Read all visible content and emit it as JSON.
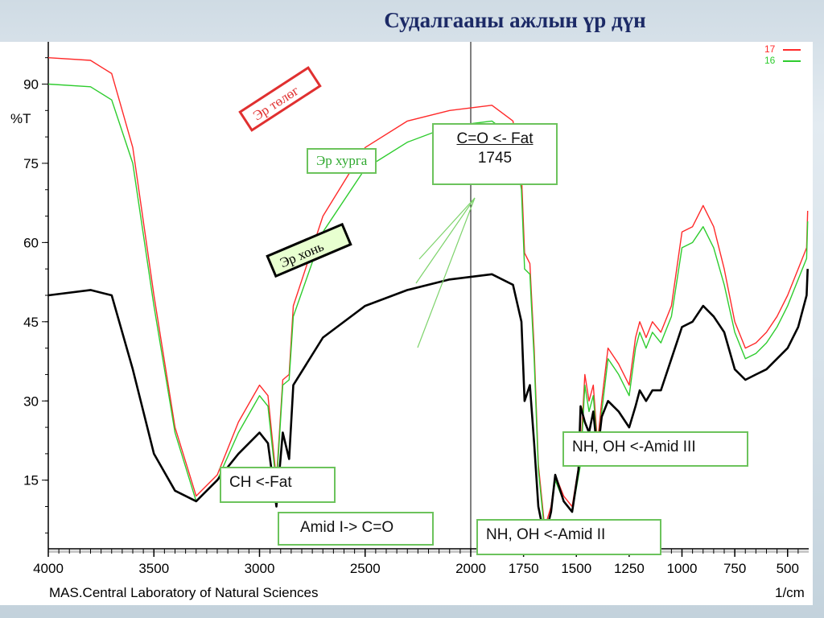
{
  "slide": {
    "title": "Судалгааны ажлын үр дүн"
  },
  "colors": {
    "red": "#ff2a2a",
    "green": "#2ecc2e",
    "black": "#000000",
    "accent": "#1c2a66"
  },
  "chart_data": {
    "type": "line",
    "xlabel": "1/cm",
    "ylabel": "%T",
    "xlim": [
      4000,
      400
    ],
    "ylim": [
      2,
      98
    ],
    "x_ticks": [
      "4000",
      "3500",
      "3000",
      "2500",
      "2000",
      "1750",
      "1500",
      "1250",
      "1000",
      "750",
      "500"
    ],
    "x_tick_values": [
      4000,
      3500,
      3000,
      2500,
      2000,
      1750,
      1500,
      1250,
      1000,
      750,
      500
    ],
    "y_ticks": [
      "90",
      "75",
      "60",
      "45",
      "30",
      "15"
    ],
    "y_tick_values": [
      90,
      75,
      60,
      45,
      30,
      15
    ],
    "footer": "MAS.Central Laboratory of Natural Sciences",
    "series": [
      {
        "name": "17",
        "color": "#ff2a2a",
        "points": [
          [
            4000,
            95
          ],
          [
            3800,
            94.5
          ],
          [
            3700,
            92
          ],
          [
            3600,
            78
          ],
          [
            3500,
            50
          ],
          [
            3400,
            25
          ],
          [
            3300,
            12
          ],
          [
            3200,
            16
          ],
          [
            3100,
            26
          ],
          [
            3000,
            33
          ],
          [
            2960,
            31
          ],
          [
            2920,
            15
          ],
          [
            2890,
            34
          ],
          [
            2860,
            35
          ],
          [
            2840,
            48
          ],
          [
            2700,
            65
          ],
          [
            2500,
            78
          ],
          [
            2300,
            83
          ],
          [
            2100,
            85
          ],
          [
            1900,
            86
          ],
          [
            1800,
            83
          ],
          [
            1760,
            73
          ],
          [
            1745,
            58
          ],
          [
            1720,
            56
          ],
          [
            1700,
            40
          ],
          [
            1680,
            18
          ],
          [
            1650,
            6
          ],
          [
            1620,
            10
          ],
          [
            1600,
            16
          ],
          [
            1560,
            12
          ],
          [
            1520,
            10
          ],
          [
            1480,
            20
          ],
          [
            1460,
            35
          ],
          [
            1440,
            30
          ],
          [
            1420,
            33
          ],
          [
            1400,
            22
          ],
          [
            1380,
            30
          ],
          [
            1350,
            40
          ],
          [
            1300,
            37
          ],
          [
            1250,
            33
          ],
          [
            1220,
            42
          ],
          [
            1200,
            45
          ],
          [
            1170,
            42
          ],
          [
            1140,
            45
          ],
          [
            1100,
            43
          ],
          [
            1050,
            48
          ],
          [
            1000,
            62
          ],
          [
            950,
            63
          ],
          [
            900,
            67
          ],
          [
            850,
            63
          ],
          [
            800,
            55
          ],
          [
            750,
            45
          ],
          [
            700,
            40
          ],
          [
            650,
            41
          ],
          [
            600,
            43
          ],
          [
            550,
            46
          ],
          [
            500,
            50
          ],
          [
            450,
            55
          ],
          [
            410,
            59
          ],
          [
            405,
            66
          ]
        ]
      },
      {
        "name": "16",
        "color": "#2ecc2e",
        "points": [
          [
            4000,
            90
          ],
          [
            3800,
            89.5
          ],
          [
            3700,
            87
          ],
          [
            3600,
            75
          ],
          [
            3500,
            48
          ],
          [
            3400,
            24
          ],
          [
            3300,
            11
          ],
          [
            3200,
            15
          ],
          [
            3100,
            24
          ],
          [
            3000,
            31
          ],
          [
            2960,
            29
          ],
          [
            2920,
            14
          ],
          [
            2890,
            33
          ],
          [
            2860,
            34
          ],
          [
            2840,
            46
          ],
          [
            2700,
            62
          ],
          [
            2500,
            74
          ],
          [
            2300,
            79
          ],
          [
            2100,
            82
          ],
          [
            1900,
            83
          ],
          [
            1800,
            80
          ],
          [
            1760,
            70
          ],
          [
            1745,
            55
          ],
          [
            1720,
            54
          ],
          [
            1700,
            38
          ],
          [
            1680,
            17
          ],
          [
            1650,
            5
          ],
          [
            1620,
            9
          ],
          [
            1600,
            15
          ],
          [
            1560,
            11
          ],
          [
            1520,
            9
          ],
          [
            1480,
            18
          ],
          [
            1460,
            33
          ],
          [
            1440,
            28
          ],
          [
            1420,
            31
          ],
          [
            1400,
            21
          ],
          [
            1380,
            28
          ],
          [
            1350,
            38
          ],
          [
            1300,
            35
          ],
          [
            1250,
            31
          ],
          [
            1220,
            40
          ],
          [
            1200,
            43
          ],
          [
            1170,
            40
          ],
          [
            1140,
            43
          ],
          [
            1100,
            41
          ],
          [
            1050,
            46
          ],
          [
            1000,
            59
          ],
          [
            950,
            60
          ],
          [
            900,
            63
          ],
          [
            850,
            59
          ],
          [
            800,
            52
          ],
          [
            750,
            43
          ],
          [
            700,
            38
          ],
          [
            650,
            39
          ],
          [
            600,
            41
          ],
          [
            550,
            44
          ],
          [
            500,
            48
          ],
          [
            450,
            53
          ],
          [
            410,
            57
          ],
          [
            405,
            64
          ]
        ]
      },
      {
        "name": "Эр хонь",
        "color": "#000000",
        "points": [
          [
            4000,
            50
          ],
          [
            3800,
            51
          ],
          [
            3700,
            50
          ],
          [
            3600,
            36
          ],
          [
            3500,
            20
          ],
          [
            3400,
            13
          ],
          [
            3300,
            11
          ],
          [
            3200,
            15
          ],
          [
            3100,
            20
          ],
          [
            3000,
            24
          ],
          [
            2960,
            22
          ],
          [
            2920,
            10
          ],
          [
            2890,
            24
          ],
          [
            2860,
            19
          ],
          [
            2840,
            33
          ],
          [
            2700,
            42
          ],
          [
            2500,
            48
          ],
          [
            2300,
            51
          ],
          [
            2100,
            53
          ],
          [
            1900,
            54
          ],
          [
            1800,
            52
          ],
          [
            1760,
            45
          ],
          [
            1745,
            30
          ],
          [
            1720,
            33
          ],
          [
            1700,
            22
          ],
          [
            1680,
            10
          ],
          [
            1650,
            4
          ],
          [
            1620,
            9
          ],
          [
            1600,
            16
          ],
          [
            1560,
            11
          ],
          [
            1520,
            9
          ],
          [
            1490,
            17
          ],
          [
            1480,
            29
          ],
          [
            1460,
            26
          ],
          [
            1440,
            24
          ],
          [
            1420,
            28
          ],
          [
            1400,
            20
          ],
          [
            1380,
            27
          ],
          [
            1350,
            30
          ],
          [
            1300,
            28
          ],
          [
            1250,
            25
          ],
          [
            1220,
            29
          ],
          [
            1200,
            32
          ],
          [
            1170,
            30
          ],
          [
            1140,
            32
          ],
          [
            1100,
            32
          ],
          [
            1050,
            38
          ],
          [
            1000,
            44
          ],
          [
            950,
            45
          ],
          [
            900,
            48
          ],
          [
            850,
            46
          ],
          [
            800,
            43
          ],
          [
            750,
            36
          ],
          [
            700,
            34
          ],
          [
            650,
            35
          ],
          [
            600,
            36
          ],
          [
            550,
            38
          ],
          [
            500,
            40
          ],
          [
            450,
            44
          ],
          [
            410,
            50
          ],
          [
            405,
            55
          ]
        ]
      }
    ],
    "annotations": [
      {
        "id": "er-tolog",
        "text": "Эр төлөг"
      },
      {
        "id": "er-khurga",
        "text": "Эр хурга"
      },
      {
        "id": "er-khon",
        "text": "Эр хонь"
      },
      {
        "id": "co-fat",
        "text": "C=O <- Fat",
        "text2": "1745"
      },
      {
        "id": "ch-fat",
        "text": "CH <-Fat"
      },
      {
        "id": "amid-i",
        "text": "Amid I-> C=O"
      },
      {
        "id": "amid-ii",
        "text": "NH, OH <-Amid II"
      },
      {
        "id": "amid-iii",
        "text": "NH, OH <-Amid III"
      }
    ]
  }
}
